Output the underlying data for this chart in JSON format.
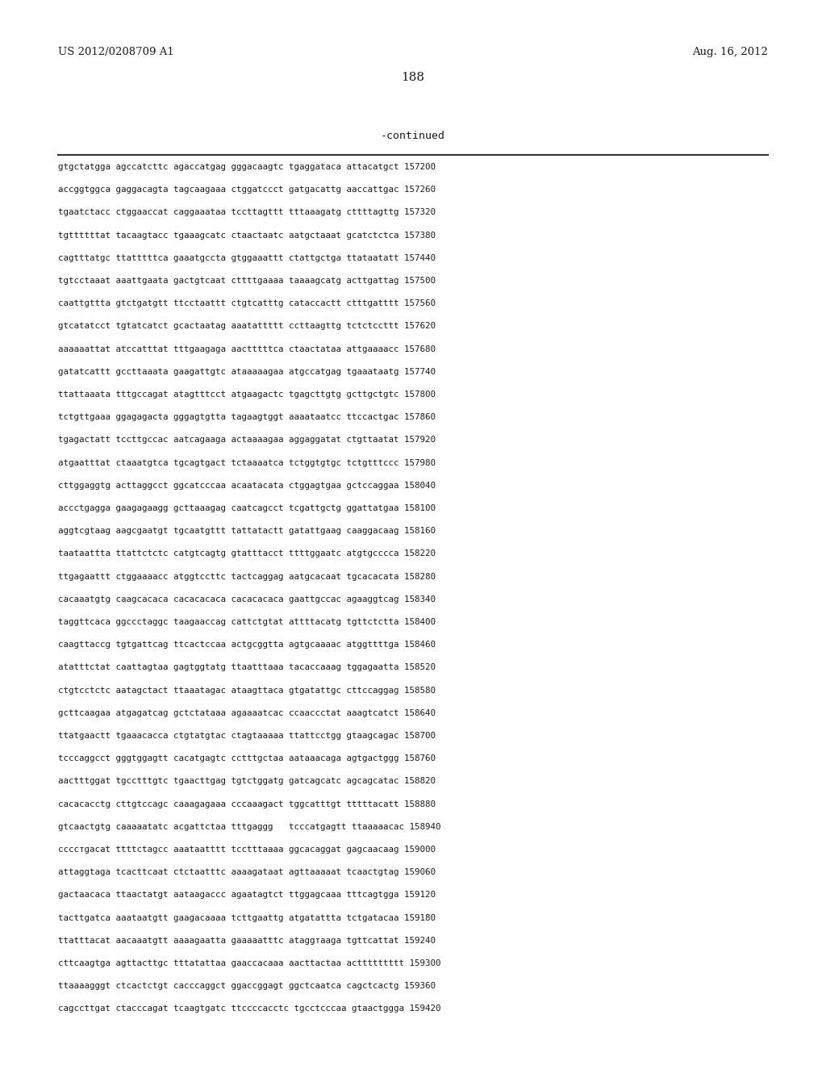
{
  "header_left": "US 2012/0208709 A1",
  "header_right": "Aug. 16, 2012",
  "page_number": "188",
  "continued_label": "-continued",
  "background_color": "#ffffff",
  "text_color": "#1a1a1a",
  "header_fontsize": 9.5,
  "page_fontsize": 11,
  "continued_fontsize": 9.5,
  "sequence_fontsize": 7.8,
  "sequences": [
    "gtgctatgga agccatcttc agaccatgag gggacaagtc tgaggataca attacatgct 157200",
    "accggtggca gaggacagta tagcaagaaa ctggatccct gatgacattg aaccattgac 157260",
    "tgaatctacc ctggaaccat caggaaataa tccttagttt tttaaagatg cttttagttg 157320",
    "tgttttttat tacaagtacc tgaaagcatc ctaactaatc aatgctaaat gcatctctca 157380",
    "cagtttatgc ttatttttca gaaatgccta gtggaaattt ctattgctga ttataatatt 157440",
    "tgtcctaaat aaattgaata gactgtcaat cttttgaaaa taaaagcatg acttgattag 157500",
    "caattgttta gtctgatgtt ttcctaattt ctgtcatttg cataccactt ctttgatttt 157560",
    "gtcatatcct tgtatcatct gcactaatag aaatattttt ccttaagttg tctctccttt 157620",
    "aaaaaattat atccatttat tttgaagaga aactttttca ctaactataa attgaaaacc 157680",
    "gatatcattt gccttaaata gaagattgtc ataaaaagaa atgccatgag tgaaataatg 157740",
    "ttattaaata tttgccagat atagtttcct atgaagactc tgagcttgtg gcttgctgtc 157800",
    "tctgttgaaa ggagagacta gggagtgtta tagaagtggt aaaataatcc ttccactgac 157860",
    "tgagactatt tccttgccac aatcagaaga actaaaagaa aggaggatat ctgttaatat 157920",
    "atgaatttat ctaaatgtca tgcagtgact tctaaaatca tctggtgtgc tctgtttccc 157980",
    "cttggaggtg acttaggcct ggcatcccaa acaatacata ctggagtgaa gctccaggaa 158040",
    "accctgagga gaagagaagg gcttaaagag caatcagcct tcgattgctg ggattatgaa 158100",
    "aggtcgtaag aagcgaatgt tgcaatgttt tattatactt gatattgaag caaggacaag 158160",
    "taataattta ttattctctc catgtcagtg gtatttacct ttttggaatc atgtgcccca 158220",
    "ttgagaattt ctggaaaacc atggtccttc tactcaggag aatgcacaat tgcacacata 158280",
    "cacaaatgtg caagcacaca cacacacacа cacacacacа gaattgccac agaaggtcag 158340",
    "taggttcaca ggccctaggc taagaaccag cattctgtat attttacatg tgttctctta 158400",
    "caagttaccg tgtgattcag ttcactccaa actgcggtta agtgcaaaac atggttttga 158460",
    "atatttctat caattagtaa gagtggtatg ttaatttaaa tacaccaaag tggagaatta 158520",
    "ctgtcctctc aatagctact ttaaatagac ataagttaca gtgatattgc cttccaggag 158580",
    "gcttcaagaa atgagatcag gctctataaa agaaaatcac ccaaccctat aaagtcatct 158640",
    "ttatgaactt tgaaacacca ctgtatgtac ctagtaaaaa ttattcctgg gtaagcagac 158700",
    "tcccaggcct gggtggagtt cacatgagtc cctttgctaa aataaacaga agtgactggg 158760",
    "aactttggat tgcctttgtc tgaacttgag tgtctggatg gatcagcatc agcagcatac 158820",
    "cacacacctg cttgtccagc caaagagaaa cccaaagact tggcatttgt tttttacatt 158880",
    "gtcaactgtg caaaaatatc acgattctaa tttgaggg   tcccatgagtt ttaaaaacac 158940",
    "ccccтgacat ttttctagcc aaataatttt tcctttaaaa ggcacaggat gagcaacaag 159000",
    "attaggtaga tcacttcaat ctctaatttc aaaagataat agttaaaaat tcaactgtag 159060",
    "gactaacaca ttaactatgt aataagaccc agaatagtct ttggagcaaa tttcagtgga 159120",
    "tacttgatca aaataatgtt gaagacaaaa tcttgaattg atgatattta tctgatacaa 159180",
    "ttatttacat aacaaatgtt aaaagaatta gaaaaatttc ataggтaaga tgttcattat 159240",
    "cttcaagtga agttacttgc tttatattaa gaaccacaaa aacttactaa acttttttttt 159300",
    "ttaaaаgggt ctcactctgt cacccaggct ggaccggagt ggctcaatca cagctcactg 159360",
    "cagccttgat ctacccagat tcaagtgatc ttccccacctc tgcctcccaa gtaactggga 159420"
  ]
}
